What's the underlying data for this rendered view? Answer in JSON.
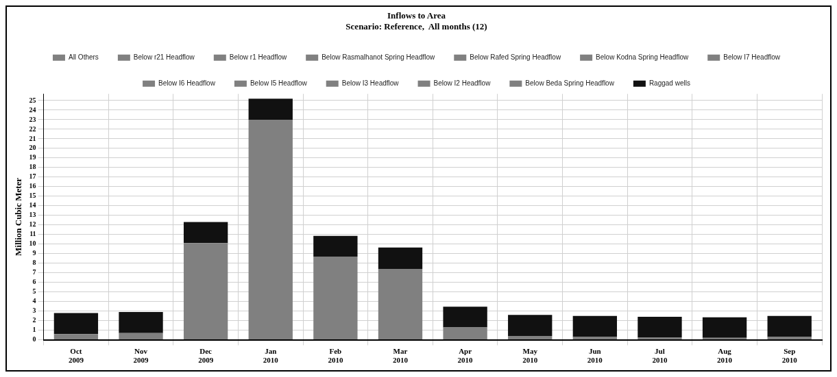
{
  "chart_data": {
    "type": "bar",
    "stacked": true,
    "title": "Inflows to Area",
    "subtitle": "Scenario: Reference,  All months (12)",
    "ylabel": "Million Cubic Meter",
    "categories": [
      "Oct 2009",
      "Nov 2009",
      "Dec 2009",
      "Jan 2010",
      "Feb 2010",
      "Mar 2010",
      "Apr 2010",
      "May 2010",
      "Jun 2010",
      "Jul 2010",
      "Aug 2010",
      "Sep 2010"
    ],
    "ylim": [
      0,
      25.7
    ],
    "yticks": [
      0,
      1,
      2,
      3,
      4,
      5,
      6,
      7,
      8,
      9,
      10,
      11,
      12,
      13,
      14,
      15,
      16,
      17,
      18,
      19,
      20,
      21,
      22,
      23,
      24,
      25
    ],
    "grid": true,
    "legend": "top",
    "series": [
      {
        "name": "All Others",
        "color": "#808080",
        "values": [
          0.6,
          0.7,
          10.1,
          23.0,
          8.7,
          7.4,
          1.3,
          0.4,
          0.3,
          0.25,
          0.2,
          0.3
        ]
      },
      {
        "name": "Below r21 Headflow",
        "color": "#808080",
        "values": [
          0,
          0,
          0,
          0,
          0,
          0,
          0,
          0,
          0,
          0,
          0,
          0
        ]
      },
      {
        "name": "Below r1 Headflow",
        "color": "#808080",
        "values": [
          0,
          0,
          0,
          0,
          0,
          0,
          0,
          0,
          0,
          0,
          0,
          0
        ]
      },
      {
        "name": "Below Rasmalhanot Spring Headflow",
        "color": "#808080",
        "values": [
          0,
          0,
          0,
          0,
          0,
          0,
          0,
          0,
          0,
          0,
          0,
          0
        ]
      },
      {
        "name": "Below Rafed Spring Headflow",
        "color": "#808080",
        "values": [
          0,
          0,
          0,
          0,
          0,
          0,
          0,
          0,
          0,
          0,
          0,
          0
        ]
      },
      {
        "name": "Below Kodna Spring Headflow",
        "color": "#808080",
        "values": [
          0,
          0,
          0,
          0,
          0,
          0,
          0,
          0,
          0,
          0,
          0,
          0
        ]
      },
      {
        "name": "Below I7 Headflow",
        "color": "#808080",
        "values": [
          0,
          0,
          0,
          0,
          0,
          0,
          0,
          0,
          0,
          0,
          0,
          0
        ]
      },
      {
        "name": "Below I6 Headflow",
        "color": "#808080",
        "values": [
          0,
          0,
          0,
          0,
          0,
          0,
          0,
          0,
          0,
          0,
          0,
          0
        ]
      },
      {
        "name": "Below I5 Headflow",
        "color": "#808080",
        "values": [
          0,
          0,
          0,
          0,
          0,
          0,
          0,
          0,
          0,
          0,
          0,
          0
        ]
      },
      {
        "name": "Below I3 Headflow",
        "color": "#808080",
        "values": [
          0,
          0,
          0,
          0,
          0,
          0,
          0,
          0,
          0,
          0,
          0,
          0
        ]
      },
      {
        "name": "Below I2 Headflow",
        "color": "#808080",
        "values": [
          0,
          0,
          0,
          0,
          0,
          0,
          0,
          0,
          0,
          0,
          0,
          0
        ]
      },
      {
        "name": "Below Beda Spring Headflow",
        "color": "#808080",
        "values": [
          0,
          0,
          0,
          0,
          0,
          0,
          0,
          0,
          0,
          0,
          0,
          0
        ]
      },
      {
        "name": "Raggad wells",
        "color": "#111111",
        "values": [
          2.2,
          2.2,
          2.2,
          2.2,
          2.15,
          2.25,
          2.15,
          2.2,
          2.2,
          2.15,
          2.15,
          2.2
        ]
      }
    ]
  }
}
